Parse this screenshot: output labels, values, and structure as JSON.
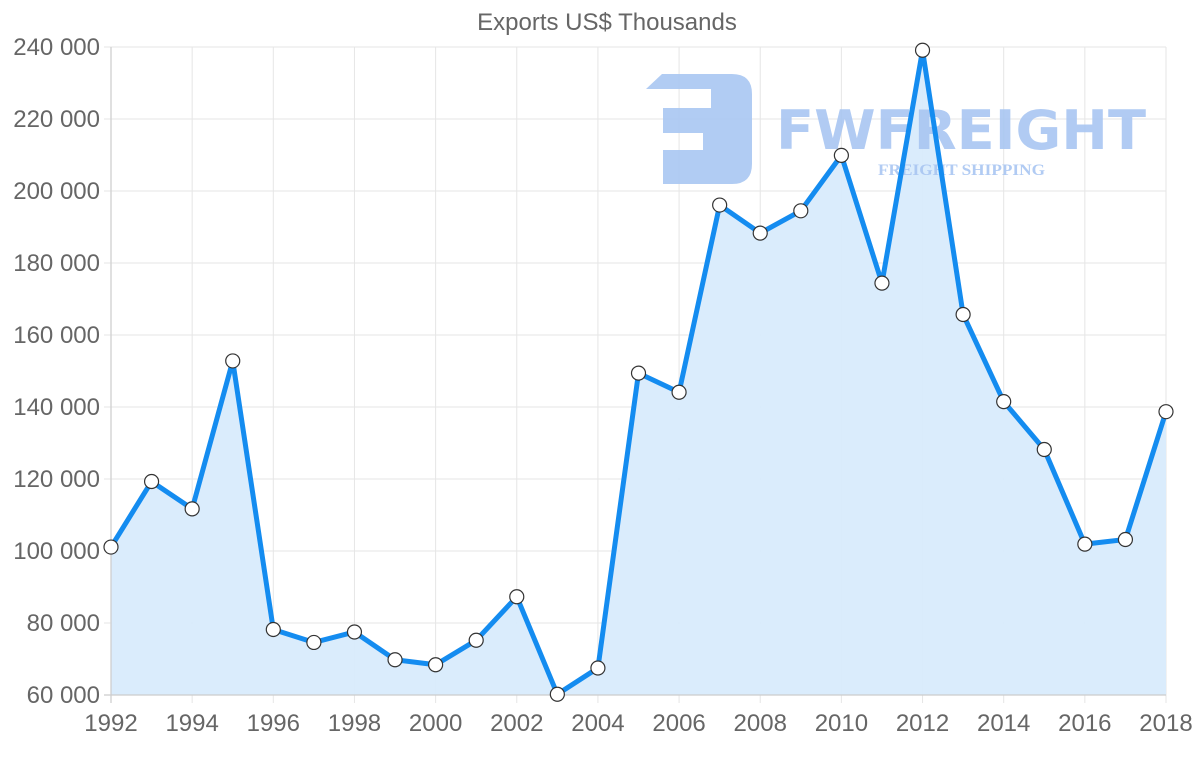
{
  "chart_data": {
    "type": "area",
    "title": "Exports US$ Thousands",
    "xlabel": "",
    "ylabel": "",
    "x": [
      1992,
      1993,
      1994,
      1995,
      1996,
      1997,
      1998,
      1999,
      2000,
      2001,
      2002,
      2003,
      2004,
      2005,
      2006,
      2007,
      2008,
      2009,
      2010,
      2011,
      2012,
      2013,
      2014,
      2015,
      2016,
      2017,
      2018
    ],
    "series": [
      {
        "name": "Exports US$ Thousands",
        "values": [
          101100,
          119300,
          111700,
          152800,
          78200,
          74600,
          77500,
          69800,
          68400,
          75200,
          87300,
          60200,
          67500,
          149400,
          144100,
          196100,
          188300,
          194500,
          209900,
          174400,
          239100,
          165700,
          141500,
          128200,
          101900,
          103200,
          138700
        ]
      }
    ],
    "ylim": [
      60000,
      240000
    ],
    "xlim": [
      1992,
      2018
    ],
    "y_ticks": [
      "60 000",
      "80 000",
      "100 000",
      "120 000",
      "140 000",
      "160 000",
      "180 000",
      "200 000",
      "220 000",
      "240 000"
    ],
    "y_tick_values": [
      60000,
      80000,
      100000,
      120000,
      140000,
      160000,
      180000,
      200000,
      220000,
      240000
    ],
    "x_ticks": [
      "1992",
      "1994",
      "1996",
      "1998",
      "2000",
      "2002",
      "2004",
      "2006",
      "2008",
      "2010",
      "2012",
      "2014",
      "2016",
      "2018"
    ],
    "x_tick_values": [
      1992,
      1994,
      1996,
      1998,
      2000,
      2002,
      2004,
      2006,
      2008,
      2010,
      2012,
      2014,
      2016,
      2018
    ],
    "grid": true,
    "legend": "none",
    "colors": {
      "line": "#148cf0",
      "fill": "#d8ebfc",
      "point_fill": "#ffffff",
      "point_border": "#333333"
    }
  },
  "watermark": {
    "brand": "FWFREIGHT",
    "tagline": "FREIGHT SHIPPING",
    "color": "#a9c6f2"
  }
}
